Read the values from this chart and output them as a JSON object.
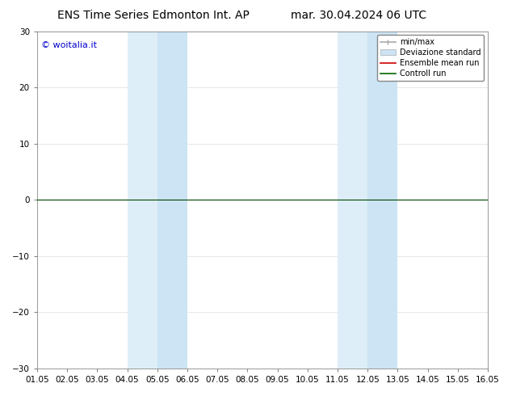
{
  "title_left": "ENS Time Series Edmonton Int. AP",
  "title_right": "mar. 30.04.2024 06 UTC",
  "ylim": [
    -30,
    30
  ],
  "yticks": [
    -30,
    -20,
    -10,
    0,
    10,
    20,
    30
  ],
  "xtick_labels": [
    "01.05",
    "02.05",
    "03.05",
    "04.05",
    "05.05",
    "06.05",
    "07.05",
    "08.05",
    "09.05",
    "10.05",
    "11.05",
    "12.05",
    "13.05",
    "14.05",
    "15.05",
    "16.05"
  ],
  "watermark": "© woitalia.it",
  "background_color": "#ffffff",
  "plot_bg_color": "#ffffff",
  "shaded_regions": [
    {
      "xstart": 3.0,
      "xend": 4.0,
      "color": "#ddeef8"
    },
    {
      "xstart": 4.0,
      "xend": 5.0,
      "color": "#cce4f4"
    },
    {
      "xstart": 10.0,
      "xend": 11.0,
      "color": "#ddeef8"
    },
    {
      "xstart": 11.0,
      "xend": 12.0,
      "color": "#cce4f4"
    }
  ],
  "legend_items": [
    {
      "label": "min/max",
      "color": "#aaaaaa",
      "lw": 1.2,
      "type": "line"
    },
    {
      "label": "Deviazione standard",
      "color": "#cce4f4",
      "edge_color": "#aaaaaa",
      "lw": 0.5,
      "type": "patch"
    },
    {
      "label": "Ensemble mean run",
      "color": "#cc0000",
      "lw": 1.2,
      "type": "line"
    },
    {
      "label": "Controll run",
      "color": "#006600",
      "lw": 1.2,
      "type": "line"
    }
  ],
  "zero_line_color": "#004400",
  "grid_color": "#dddddd",
  "title_fontsize": 10,
  "tick_fontsize": 7.5,
  "watermark_color": "#0000cc",
  "watermark_fontsize": 8,
  "legend_fontsize": 7
}
